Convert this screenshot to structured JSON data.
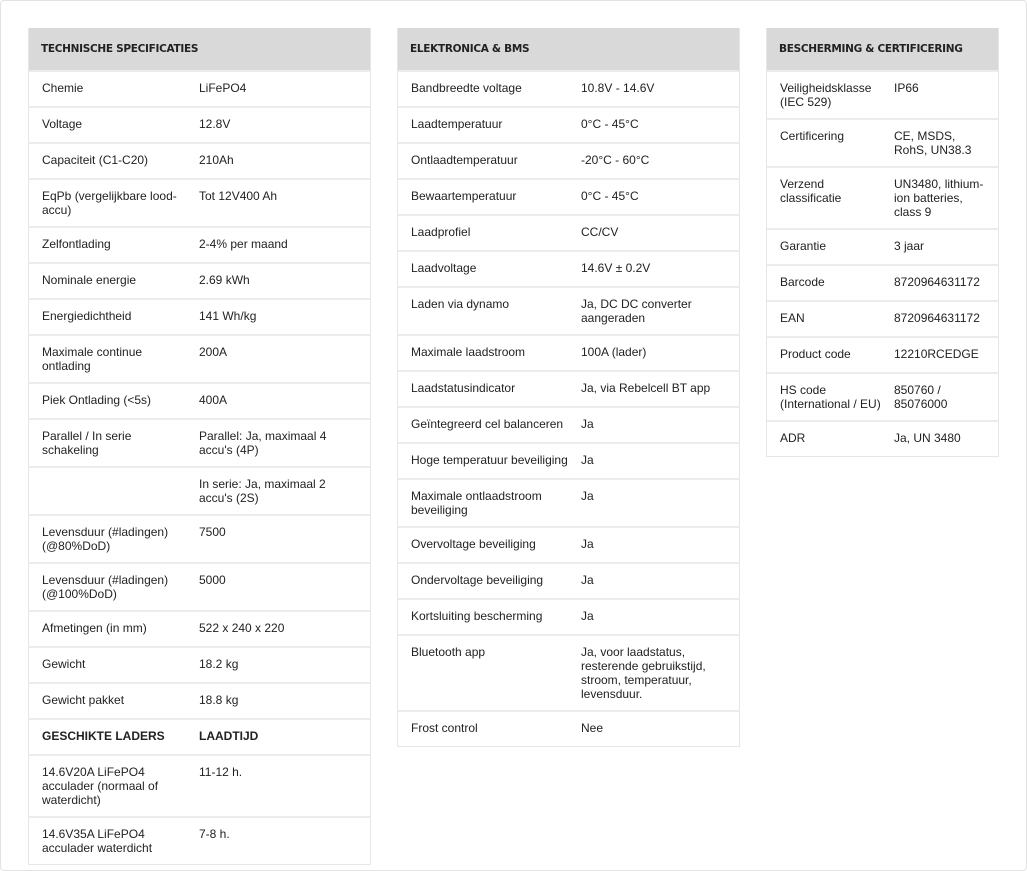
{
  "tables": [
    {
      "title": "Technische specificaties",
      "rows": [
        {
          "label": "Chemie",
          "value": "LiFePO4"
        },
        {
          "label": "Voltage",
          "value": "12.8V"
        },
        {
          "label": "Capaciteit (C1-C20)",
          "value": "210Ah"
        },
        {
          "label": "EqPb (vergelijkbare lood-accu)",
          "value": "Tot 12V400 Ah"
        },
        {
          "label": "Zelfontlading",
          "value": "2-4% per maand"
        },
        {
          "label": "Nominale energie",
          "value": "2.69 kWh"
        },
        {
          "label": "Energiedichtheid",
          "value": "141 Wh/kg"
        },
        {
          "label": "Maximale continue ontlading",
          "value": "200A"
        },
        {
          "label": "Piek Ontlading (<5s)",
          "value": "400A"
        },
        {
          "label": "Parallel / In serie schakeling",
          "value": "Parallel: Ja, maximaal 4 accu's (4P)"
        },
        {
          "label": "",
          "value": "In serie: Ja, maximaal 2 accu's (2S)"
        },
        {
          "label": "Levensduur (#ladingen) (@80%DoD)",
          "value": "7500"
        },
        {
          "label": "Levensduur (#ladingen) (@100%DoD)",
          "value": "5000"
        },
        {
          "label": "Afmetingen (in mm)",
          "value": "522 x 240 x 220"
        },
        {
          "label": "Gewicht",
          "value": "18.2 kg"
        },
        {
          "label": "Gewicht pakket",
          "value": "18.8 kg"
        },
        {
          "label": "GESCHIKTE LADERS",
          "value": "LAADTIJD",
          "bold": true
        },
        {
          "label": "14.6V20A LiFePO4 acculader (normaal of waterdicht)",
          "value": "11-12 h."
        },
        {
          "label": "14.6V35A LiFePO4 acculader waterdicht",
          "value": "7-8 h."
        }
      ]
    },
    {
      "title": "Elektronica & BMS",
      "rows": [
        {
          "label": "Bandbreedte voltage",
          "value": "10.8V - 14.6V"
        },
        {
          "label": "Laadtemperatuur",
          "value": "0°C - 45°C"
        },
        {
          "label": "Ontlaadtemperatuur",
          "value": "-20°C - 60°C"
        },
        {
          "label": "Bewaartemperatuur",
          "value": "0°C - 45°C"
        },
        {
          "label": "Laadprofiel",
          "value": "CC/CV"
        },
        {
          "label": "Laadvoltage",
          "value": "14.6V ± 0.2V"
        },
        {
          "label": "Laden via dynamo",
          "value": "Ja, DC DC converter aangeraden"
        },
        {
          "label": "Maximale laadstroom",
          "value": "100A (lader)"
        },
        {
          "label": "Laadstatusindicator",
          "value": "Ja, via Rebelcell BT app"
        },
        {
          "label": "Geïntegreerd cel balanceren",
          "value": "Ja"
        },
        {
          "label": "Hoge temperatuur beveiliging",
          "value": "Ja"
        },
        {
          "label": "Maximale ontlaadstroom beveiliging",
          "value": "Ja"
        },
        {
          "label": "Overvoltage beveiliging",
          "value": "Ja"
        },
        {
          "label": "Ondervoltage beveiliging",
          "value": "Ja"
        },
        {
          "label": "Kortsluiting bescherming",
          "value": "Ja"
        },
        {
          "label": "Bluetooth app",
          "value": "Ja, voor laadstatus, resterende gebruikstijd, stroom, temperatuur, levensduur."
        },
        {
          "label": "Frost control",
          "value": "Nee"
        }
      ]
    },
    {
      "title": "Bescherming & Certificering",
      "rows": [
        {
          "label": "Veiligheidsklasse (IEC 529)",
          "value": "IP66"
        },
        {
          "label": "Certificering",
          "value": "CE, MSDS, RohS, UN38.3"
        },
        {
          "label": "Verzend classificatie",
          "value": "UN3480, lithium-ion batteries, class 9"
        },
        {
          "label": "Garantie",
          "value": "3 jaar"
        },
        {
          "label": "Barcode",
          "value": "8720964631172"
        },
        {
          "label": "EAN",
          "value": "8720964631172"
        },
        {
          "label": "Product code",
          "value": "12210RCEDGE"
        },
        {
          "label": "HS code (International / EU)",
          "value": "850760 / 85076000"
        },
        {
          "label": "ADR",
          "value": "Ja, UN 3480"
        }
      ]
    }
  ]
}
